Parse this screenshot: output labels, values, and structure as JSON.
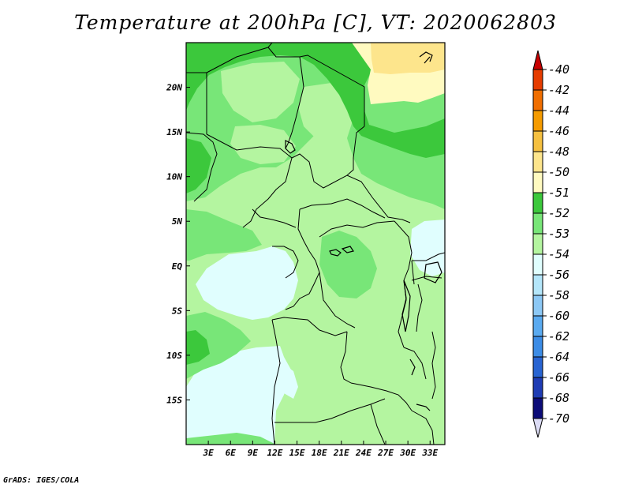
{
  "title": "Temperature at 200hPa [C], VT: 2020062803",
  "credit": "GrADS: IGES/COLA",
  "map": {
    "lon_range": [
      0,
      35
    ],
    "lat_range": [
      -20,
      25
    ],
    "lon_ticks": [
      {
        "value": 3,
        "label": "3E"
      },
      {
        "value": 6,
        "label": "6E"
      },
      {
        "value": 9,
        "label": "9E"
      },
      {
        "value": 12,
        "label": "12E"
      },
      {
        "value": 15,
        "label": "15E"
      },
      {
        "value": 18,
        "label": "18E"
      },
      {
        "value": 21,
        "label": "21E"
      },
      {
        "value": 24,
        "label": "24E"
      },
      {
        "value": 27,
        "label": "27E"
      },
      {
        "value": 30,
        "label": "30E"
      },
      {
        "value": 33,
        "label": "33E"
      }
    ],
    "lat_ticks": [
      {
        "value": 20,
        "label": "20N"
      },
      {
        "value": 15,
        "label": "15N"
      },
      {
        "value": 10,
        "label": "10N"
      },
      {
        "value": 5,
        "label": "5N"
      },
      {
        "value": 0,
        "label": "EQ"
      },
      {
        "value": -5,
        "label": "5S"
      },
      {
        "value": -10,
        "label": "10S"
      },
      {
        "value": -15,
        "label": "15S"
      }
    ]
  },
  "colorbar": {
    "labels": [
      "-40",
      "-42",
      "-44",
      "-46",
      "-48",
      "-50",
      "-51",
      "-52",
      "-53",
      "-54",
      "-56",
      "-58",
      "-60",
      "-62",
      "-64",
      "-66",
      "-68",
      "-70"
    ],
    "colors": [
      "#c80000",
      "#e63c00",
      "#f06e00",
      "#f59b00",
      "#f5c040",
      "#fde58c",
      "#fffac0",
      "#3cc83c",
      "#78e678",
      "#b4f5a0",
      "#e0fefe",
      "#b4e6fa",
      "#8cc8f5",
      "#5aaaf0",
      "#3c8ce6",
      "#2864d2",
      "#1e3cb4",
      "#0c0c78"
    ],
    "top_arrow_color": "#c80000",
    "bottom_arrow_color": "#dcdcf5"
  },
  "fill_colors": {
    "t50": "#fde58c",
    "t51": "#fffac0",
    "t52": "#3cc83c",
    "t53": "#78e678",
    "t54": "#b4f5a0",
    "t56": "#e0fefe"
  }
}
